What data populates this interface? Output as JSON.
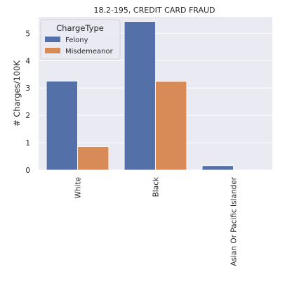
{
  "chart_data": {
    "type": "bar",
    "title": "18.2-195, CREDIT CARD FRAUD",
    "xlabel": "",
    "ylabel": "# Charges/100K",
    "categories": [
      "White",
      "Black",
      "Asian Or Pacific Islander"
    ],
    "series": [
      {
        "name": "Felony",
        "values": [
          3.25,
          5.43,
          0.16
        ],
        "color": "#5470a8"
      },
      {
        "name": "Misdemeanor",
        "values": [
          0.86,
          3.24,
          0
        ],
        "color": "#d88a57"
      }
    ],
    "ylim": [
      0,
      5.6
    ],
    "yticks": [
      "0",
      "1",
      "2",
      "3",
      "4",
      "5"
    ],
    "grid": true,
    "legend": {
      "title": "ChargeType",
      "placement": "top-left"
    },
    "colors": {
      "plot_background": "#eaeaf2",
      "grid": "#ffffff"
    }
  }
}
